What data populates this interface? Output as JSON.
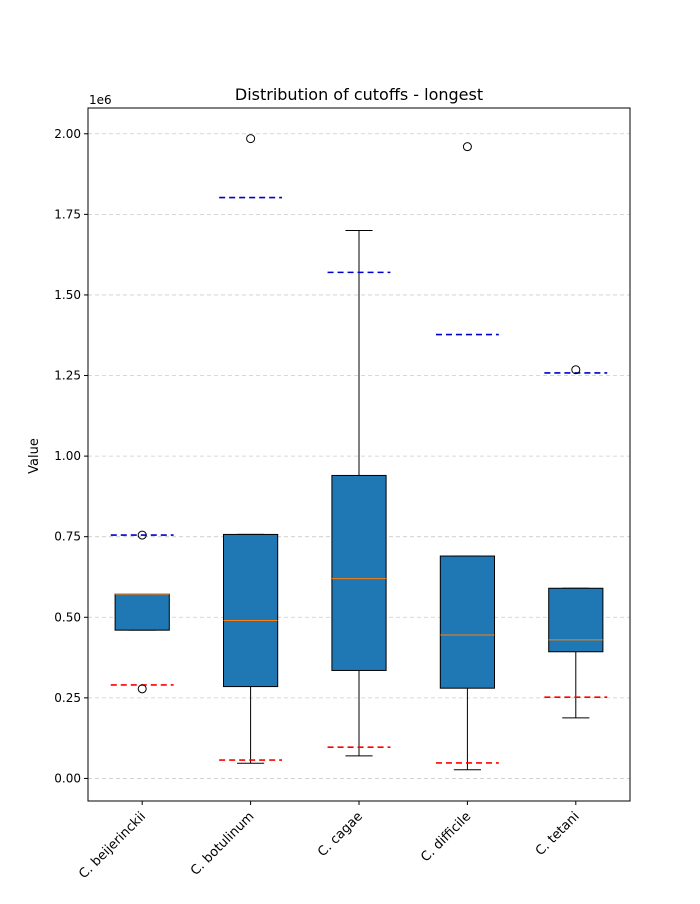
{
  "chart_data": {
    "type": "box",
    "title": "Distribution of cutoffs - longest",
    "xlabel": "",
    "ylabel": "Value",
    "y_multiplier_label": "1e6",
    "ylim": [
      -70000,
      2080000
    ],
    "grid": "horizontal dashed",
    "categories": [
      "C. beijerinckii",
      "C. botulinum",
      "C. cagae",
      "C. difficile",
      "C. tetani"
    ],
    "yticks": [
      0,
      250000,
      500000,
      750000,
      1000000,
      1250000,
      1500000,
      1750000,
      2000000
    ],
    "ytick_labels": [
      "0.00",
      "0.25",
      "0.50",
      "0.75",
      "1.00",
      "1.25",
      "1.50",
      "1.75",
      "2.00"
    ],
    "boxes": [
      {
        "category": "C. beijerinckii",
        "whisker_low": 460000,
        "q1": 460000,
        "median": 572000,
        "q3": 572000,
        "whisker_high": 572000,
        "outliers": [
          278000,
          755000
        ],
        "upper_cutoff": 755000,
        "lower_cutoff": 290000
      },
      {
        "category": "C. botulinum",
        "whisker_low": 47000,
        "q1": 285000,
        "median": 490000,
        "q3": 757000,
        "whisker_high": 757000,
        "outliers": [
          1985000
        ],
        "upper_cutoff": 1802000,
        "lower_cutoff": 57000
      },
      {
        "category": "C. cagae",
        "whisker_low": 70000,
        "q1": 335000,
        "median": 620000,
        "q3": 940000,
        "whisker_high": 1700000,
        "outliers": [],
        "upper_cutoff": 1570000,
        "lower_cutoff": 97000
      },
      {
        "category": "C. difficile",
        "whisker_low": 27000,
        "q1": 280000,
        "median": 445000,
        "q3": 690000,
        "whisker_high": 690000,
        "outliers": [
          1960000
        ],
        "upper_cutoff": 1377000,
        "lower_cutoff": 48000
      },
      {
        "category": "C. tetani",
        "whisker_low": 188000,
        "q1": 393000,
        "median": 430000,
        "q3": 590000,
        "whisker_high": 590000,
        "outliers": [
          1268000
        ],
        "upper_cutoff": 1258000,
        "lower_cutoff": 252000
      }
    ],
    "colors": {
      "box_fill": "#1f77b4",
      "median": "#ff7f0e",
      "upper_cutoff": "#0000cc",
      "lower_cutoff": "#ff0000",
      "grid": "#cccccc"
    }
  }
}
